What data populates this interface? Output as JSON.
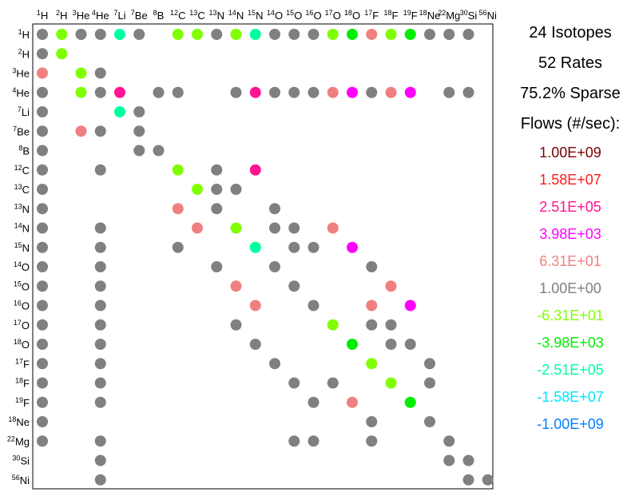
{
  "chart_data": {
    "type": "scatter",
    "title": "",
    "xlabel": "",
    "ylabel": "",
    "isotopes": [
      {
        "mass": "1",
        "symbol": "H"
      },
      {
        "mass": "2",
        "symbol": "H"
      },
      {
        "mass": "3",
        "symbol": "He"
      },
      {
        "mass": "4",
        "symbol": "He"
      },
      {
        "mass": "7",
        "symbol": "Li"
      },
      {
        "mass": "7",
        "symbol": "Be"
      },
      {
        "mass": "8",
        "symbol": "B"
      },
      {
        "mass": "12",
        "symbol": "C"
      },
      {
        "mass": "13",
        "symbol": "C"
      },
      {
        "mass": "13",
        "symbol": "N"
      },
      {
        "mass": "14",
        "symbol": "N"
      },
      {
        "mass": "15",
        "symbol": "N"
      },
      {
        "mass": "14",
        "symbol": "O"
      },
      {
        "mass": "15",
        "symbol": "O"
      },
      {
        "mass": "16",
        "symbol": "O"
      },
      {
        "mass": "17",
        "symbol": "O"
      },
      {
        "mass": "18",
        "symbol": "O"
      },
      {
        "mass": "17",
        "symbol": "F"
      },
      {
        "mass": "18",
        "symbol": "F"
      },
      {
        "mass": "19",
        "symbol": "F"
      },
      {
        "mass": "18",
        "symbol": "Ne"
      },
      {
        "mass": "22",
        "symbol": "Mg"
      },
      {
        "mass": "30",
        "symbol": "Si"
      },
      {
        "mass": "56",
        "symbol": "Ni"
      }
    ],
    "flow_colors": {
      "1": "#7a0000",
      "2": "#ff1a1a",
      "3": "#ff1493",
      "4": "#ff00ff",
      "5": "#f08080",
      "6": "#808080",
      "7": "#80ff00",
      "8": "#00ee00",
      "9": "#00ff9f",
      "10": "#00e5ff",
      "11": "#0080ff"
    },
    "entries": [
      [
        0,
        0,
        6
      ],
      [
        0,
        1,
        7
      ],
      [
        0,
        2,
        6
      ],
      [
        0,
        3,
        6
      ],
      [
        0,
        4,
        9
      ],
      [
        0,
        5,
        6
      ],
      [
        0,
        7,
        7
      ],
      [
        0,
        8,
        7
      ],
      [
        0,
        9,
        6
      ],
      [
        0,
        10,
        7
      ],
      [
        0,
        11,
        9
      ],
      [
        0,
        12,
        6
      ],
      [
        0,
        13,
        6
      ],
      [
        0,
        14,
        6
      ],
      [
        0,
        15,
        7
      ],
      [
        0,
        16,
        8
      ],
      [
        0,
        17,
        5
      ],
      [
        0,
        18,
        7
      ],
      [
        0,
        19,
        8
      ],
      [
        0,
        20,
        6
      ],
      [
        0,
        21,
        6
      ],
      [
        0,
        22,
        6
      ],
      [
        1,
        0,
        6
      ],
      [
        1,
        1,
        7
      ],
      [
        2,
        0,
        5
      ],
      [
        2,
        2,
        7
      ],
      [
        2,
        3,
        6
      ],
      [
        3,
        0,
        6
      ],
      [
        3,
        2,
        7
      ],
      [
        3,
        3,
        6
      ],
      [
        3,
        4,
        3
      ],
      [
        3,
        6,
        6
      ],
      [
        3,
        7,
        6
      ],
      [
        3,
        10,
        6
      ],
      [
        3,
        11,
        3
      ],
      [
        3,
        12,
        6
      ],
      [
        3,
        13,
        6
      ],
      [
        3,
        14,
        6
      ],
      [
        3,
        15,
        5
      ],
      [
        3,
        16,
        4
      ],
      [
        3,
        17,
        6
      ],
      [
        3,
        18,
        5
      ],
      [
        3,
        19,
        4
      ],
      [
        3,
        21,
        6
      ],
      [
        3,
        22,
        6
      ],
      [
        4,
        0,
        6
      ],
      [
        4,
        4,
        9
      ],
      [
        4,
        5,
        6
      ],
      [
        5,
        0,
        6
      ],
      [
        5,
        2,
        5
      ],
      [
        5,
        3,
        6
      ],
      [
        5,
        5,
        6
      ],
      [
        6,
        0,
        6
      ],
      [
        6,
        5,
        6
      ],
      [
        6,
        6,
        6
      ],
      [
        7,
        0,
        6
      ],
      [
        7,
        3,
        6
      ],
      [
        7,
        7,
        7
      ],
      [
        7,
        9,
        6
      ],
      [
        7,
        11,
        3
      ],
      [
        8,
        0,
        6
      ],
      [
        8,
        8,
        7
      ],
      [
        8,
        9,
        6
      ],
      [
        8,
        10,
        6
      ],
      [
        9,
        0,
        6
      ],
      [
        9,
        7,
        5
      ],
      [
        9,
        9,
        6
      ],
      [
        9,
        12,
        6
      ],
      [
        10,
        0,
        6
      ],
      [
        10,
        3,
        6
      ],
      [
        10,
        8,
        5
      ],
      [
        10,
        10,
        7
      ],
      [
        10,
        12,
        6
      ],
      [
        10,
        13,
        6
      ],
      [
        10,
        15,
        5
      ],
      [
        11,
        0,
        6
      ],
      [
        11,
        3,
        6
      ],
      [
        11,
        7,
        6
      ],
      [
        11,
        11,
        9
      ],
      [
        11,
        13,
        6
      ],
      [
        11,
        14,
        6
      ],
      [
        11,
        16,
        4
      ],
      [
        12,
        0,
        6
      ],
      [
        12,
        3,
        6
      ],
      [
        12,
        9,
        6
      ],
      [
        12,
        12,
        6
      ],
      [
        12,
        17,
        6
      ],
      [
        13,
        0,
        6
      ],
      [
        13,
        3,
        6
      ],
      [
        13,
        10,
        5
      ],
      [
        13,
        13,
        6
      ],
      [
        13,
        18,
        5
      ],
      [
        14,
        0,
        6
      ],
      [
        14,
        3,
        6
      ],
      [
        14,
        11,
        5
      ],
      [
        14,
        14,
        6
      ],
      [
        14,
        17,
        5
      ],
      [
        14,
        19,
        4
      ],
      [
        15,
        0,
        6
      ],
      [
        15,
        3,
        6
      ],
      [
        15,
        10,
        6
      ],
      [
        15,
        15,
        7
      ],
      [
        15,
        17,
        6
      ],
      [
        15,
        18,
        6
      ],
      [
        16,
        0,
        6
      ],
      [
        16,
        3,
        6
      ],
      [
        16,
        11,
        6
      ],
      [
        16,
        16,
        8
      ],
      [
        16,
        18,
        6
      ],
      [
        16,
        19,
        6
      ],
      [
        17,
        0,
        6
      ],
      [
        17,
        3,
        6
      ],
      [
        17,
        12,
        6
      ],
      [
        17,
        17,
        7
      ],
      [
        17,
        20,
        6
      ],
      [
        18,
        0,
        6
      ],
      [
        18,
        3,
        6
      ],
      [
        18,
        13,
        6
      ],
      [
        18,
        15,
        6
      ],
      [
        18,
        18,
        7
      ],
      [
        18,
        20,
        6
      ],
      [
        19,
        0,
        6
      ],
      [
        19,
        3,
        6
      ],
      [
        19,
        14,
        6
      ],
      [
        19,
        16,
        5
      ],
      [
        19,
        19,
        8
      ],
      [
        20,
        0,
        6
      ],
      [
        20,
        17,
        6
      ],
      [
        20,
        20,
        6
      ],
      [
        21,
        0,
        6
      ],
      [
        21,
        3,
        6
      ],
      [
        21,
        13,
        6
      ],
      [
        21,
        14,
        6
      ],
      [
        21,
        17,
        6
      ],
      [
        21,
        21,
        6
      ],
      [
        22,
        3,
        6
      ],
      [
        22,
        21,
        6
      ],
      [
        22,
        22,
        6
      ],
      [
        23,
        3,
        6
      ],
      [
        23,
        22,
        6
      ],
      [
        23,
        23,
        6
      ]
    ]
  },
  "stats": {
    "isotopes": "24 Isotopes",
    "rates": "52 Rates",
    "sparse": "75.2% Sparse",
    "flows_title": "Flows (#/sec):"
  },
  "legend": [
    {
      "label": "1.00E+09",
      "color": "#7a0000"
    },
    {
      "label": "1.58E+07",
      "color": "#ff1a1a"
    },
    {
      "label": "2.51E+05",
      "color": "#ff1493"
    },
    {
      "label": "3.98E+03",
      "color": "#ff00ff"
    },
    {
      "label": "6.31E+01",
      "color": "#f08080"
    },
    {
      "label": "1.00E+00",
      "color": "#808080"
    },
    {
      "label": "-6.31E+01",
      "color": "#80ff00"
    },
    {
      "label": "-3.98E+03",
      "color": "#00ee00"
    },
    {
      "label": "-2.51E+05",
      "color": "#00ff9f"
    },
    {
      "label": "-1.58E+07",
      "color": "#00e5ff"
    },
    {
      "label": "-1.00E+09",
      "color": "#0080ff"
    }
  ]
}
